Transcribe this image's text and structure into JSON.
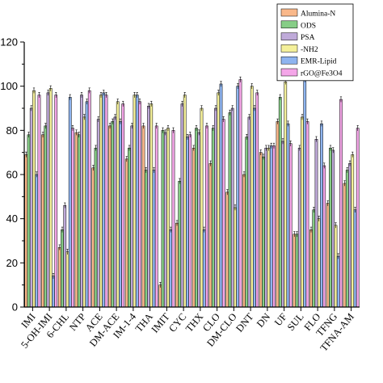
{
  "chart_data": {
    "type": "bar",
    "title": "",
    "xlabel": "",
    "ylabel": "",
    "ylim": [
      0,
      120
    ],
    "yticks": [
      0,
      20,
      40,
      60,
      80,
      100,
      120
    ],
    "legend_position": "top-right",
    "categories": [
      "IMI",
      "5-OH-IMI",
      "6-CHL",
      "NTP",
      "ACE",
      "DM-ACE",
      "IM-1-4",
      "THA",
      "IMIT",
      "CYC",
      "THX",
      "CLO",
      "DM-CLO",
      "DNT",
      "DN",
      "UF",
      "SUL",
      "FLO",
      "TFNG",
      "TFNA-AM"
    ],
    "series": [
      {
        "name": "Alumina-N",
        "color": "#f9b88a",
        "values": [
          69,
          78,
          27,
          79,
          63,
          82,
          67,
          82,
          10,
          38,
          72,
          65,
          52,
          60,
          70,
          84,
          33,
          35,
          47,
          56
        ]
      },
      {
        "name": "ODS",
        "color": "#86cd86",
        "values": [
          78,
          82,
          35,
          78,
          72,
          84,
          72,
          62,
          80,
          57,
          81,
          81,
          88,
          77,
          68,
          95,
          33,
          44,
          72,
          62
        ]
      },
      {
        "name": "PSA",
        "color": "#bfaad9",
        "values": [
          90,
          97,
          46,
          96,
          85,
          86,
          82,
          91,
          79,
          92,
          79,
          90,
          90,
          86,
          72,
          75,
          72,
          76,
          71,
          65
        ]
      },
      {
        "name": "-NH2",
        "color": "#f4f09a",
        "values": [
          98,
          99,
          25,
          86,
          96,
          93,
          96,
          92,
          81,
          96,
          90,
          97,
          45,
          100,
          72,
          102,
          86,
          40,
          37,
          69
        ]
      },
      {
        "name": "EMR-Lipid",
        "color": "#8eb4ef",
        "values": [
          60,
          14,
          95,
          93,
          97,
          84,
          96,
          62,
          35,
          77,
          35,
          101,
          100,
          90,
          73,
          83,
          103,
          83,
          23,
          44
        ]
      },
      {
        "name": "rGO@Fe3O4",
        "color": "#f4a6e8",
        "values": [
          96,
          96,
          81,
          98,
          96,
          92,
          93,
          82,
          80,
          78,
          82,
          85,
          103,
          97,
          73,
          74,
          84,
          64,
          94,
          81
        ]
      }
    ]
  }
}
